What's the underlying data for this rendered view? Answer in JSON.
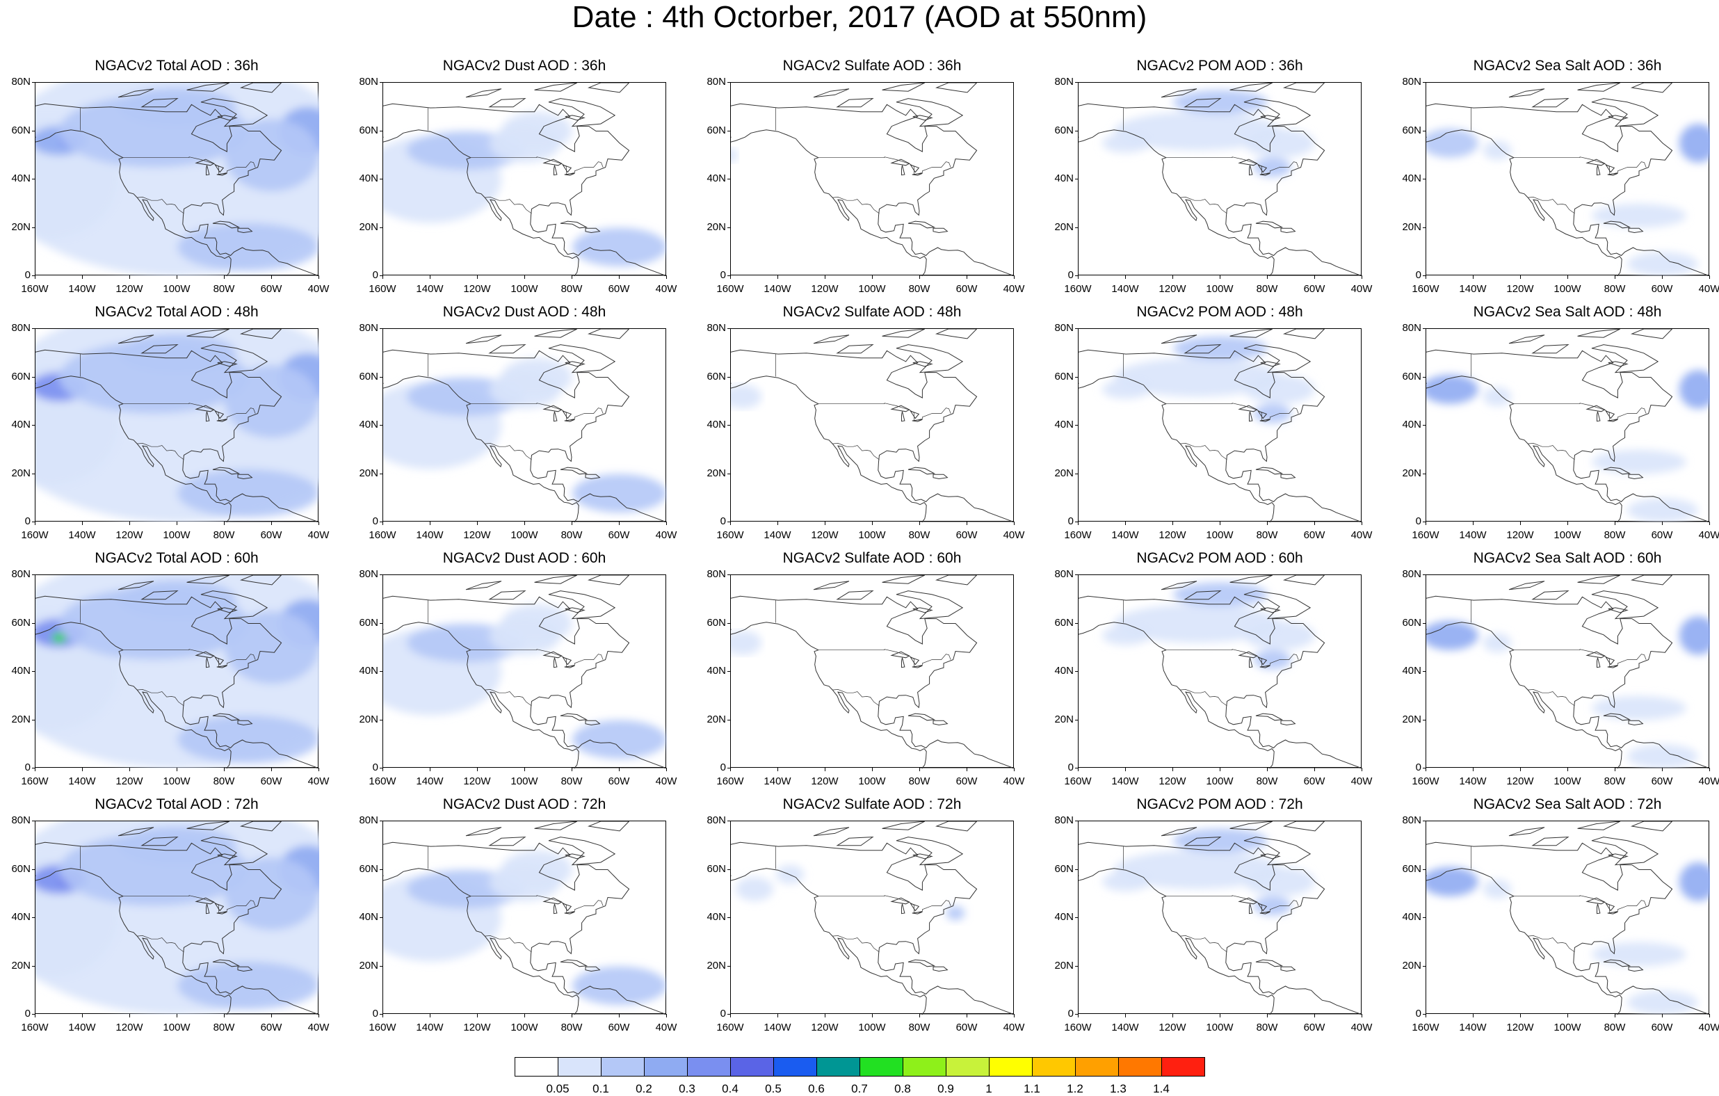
{
  "title": "Date : 4th Octorber, 2017 (AOD at 550nm)",
  "lat_labels": [
    "80N",
    "60N",
    "40N",
    "20N",
    "0"
  ],
  "lon_labels": [
    "160W",
    "140W",
    "120W",
    "100W",
    "80W",
    "60W",
    "40W"
  ],
  "colorbar": {
    "levels": [
      "0.05",
      "0.1",
      "0.2",
      "0.3",
      "0.4",
      "0.5",
      "0.6",
      "0.7",
      "0.8",
      "0.9",
      "1",
      "1.1",
      "1.2",
      "1.3",
      "1.4"
    ],
    "colors": [
      "#ffffff",
      "#d9e4fb",
      "#b4c8f7",
      "#8fabf2",
      "#7a8ff0",
      "#5a64e6",
      "#1a5cf0",
      "#009694",
      "#22e022",
      "#8ef01a",
      "#c8f23a",
      "#ffff00",
      "#ffc800",
      "#ffa000",
      "#ff7800",
      "#ff2010"
    ]
  },
  "rows": [
    {
      "hour": "36h",
      "titles": [
        "NGACv2 Total AOD : 36h",
        "NGACv2 Dust AOD : 36h",
        "NGACv2 Sulfate AOD : 36h",
        "NGACv2 POM AOD : 36h",
        "NGACv2 Sea Salt AOD : 36h"
      ]
    },
    {
      "hour": "48h",
      "titles": [
        "NGACv2 Total AOD : 48h",
        "NGACv2 Dust AOD : 48h",
        "NGACv2 Sulfate AOD : 48h",
        "NGACv2 POM AOD : 48h",
        "NGACv2 Sea Salt AOD : 48h"
      ]
    },
    {
      "hour": "60h",
      "titles": [
        "NGACv2 Total AOD : 60h",
        "NGACv2 Dust AOD : 60h",
        "NGACv2 Sulfate AOD : 60h",
        "NGACv2 POM AOD : 60h",
        "NGACv2 Sea Salt AOD : 60h"
      ]
    },
    {
      "hour": "72h",
      "titles": [
        "NGACv2 Total AOD : 72h",
        "NGACv2 Dust AOD : 72h",
        "NGACv2 Sulfate AOD : 72h",
        "NGACv2 POM AOD : 72h",
        "NGACv2 Sea Salt AOD : 72h"
      ]
    }
  ],
  "map_extent": {
    "lon": [
      -160,
      -40
    ],
    "lat": [
      0,
      80
    ]
  },
  "species": [
    "Total",
    "Dust",
    "Sulfate",
    "POM",
    "Sea Salt"
  ]
}
